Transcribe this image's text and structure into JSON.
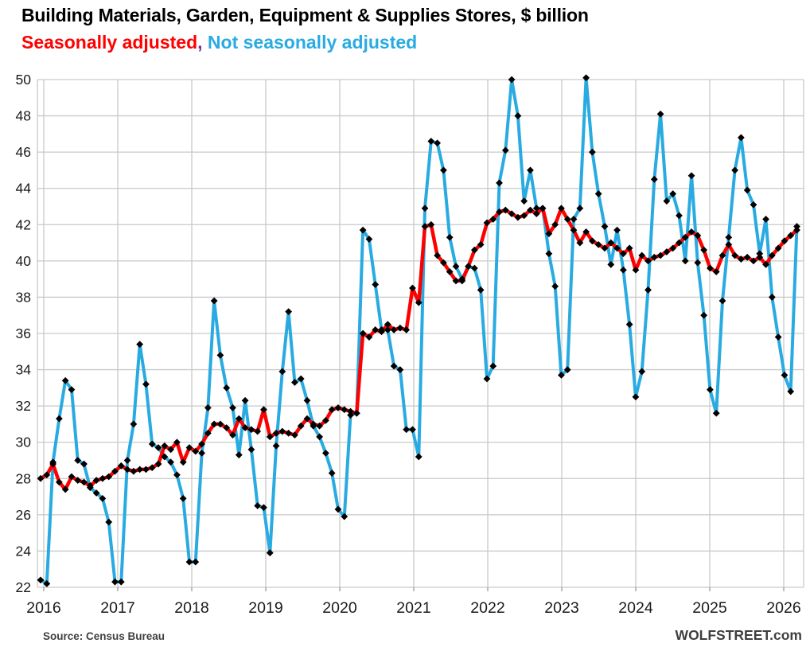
{
  "title": "Building Materials, Garden, Equipment & Supplies Stores, $ billion",
  "subtitle": {
    "sa_label": "Seasonally adjusted",
    "separator": ", ",
    "nsa_label": "Not seasonally adjusted",
    "sa_color": "#ff0000",
    "separator_color": "#7030a0",
    "nsa_color": "#29abe2"
  },
  "footer": {
    "source": "Source: Census Bureau",
    "site": "WOLFSTREET.com"
  },
  "chart_data": {
    "type": "line",
    "title": "Building Materials, Garden, Equipment & Supplies Stores, $ billion",
    "x_start": "2016-01",
    "x_end": "2026-03",
    "x_frequency": "monthly",
    "x_tick_labels": [
      "2016",
      "2017",
      "2018",
      "2019",
      "2020",
      "2021",
      "2022",
      "2023",
      "2024",
      "2025",
      "2026"
    ],
    "ylim": [
      22,
      50
    ],
    "y_ticks": [
      22,
      24,
      26,
      28,
      30,
      32,
      34,
      36,
      38,
      40,
      42,
      44,
      46,
      48,
      50
    ],
    "grid": true,
    "marker": "diamond",
    "marker_color": "#000000",
    "grid_color": "#c9c9c9",
    "legend_position": "subtitle",
    "series": [
      {
        "name": "Not seasonally adjusted",
        "color": "#29abe2",
        "width": 4,
        "values": [
          22.4,
          22.2,
          28.9,
          31.3,
          33.4,
          32.9,
          29.0,
          28.8,
          27.5,
          27.2,
          26.9,
          25.6,
          22.3,
          22.3,
          29.0,
          31.0,
          35.4,
          33.2,
          29.9,
          29.7,
          29.2,
          28.9,
          28.2,
          26.9,
          23.4,
          23.4,
          29.4,
          31.9,
          37.8,
          34.8,
          33.0,
          31.9,
          29.3,
          32.3,
          29.6,
          26.5,
          26.4,
          23.9,
          29.8,
          33.9,
          37.2,
          33.3,
          33.5,
          32.3,
          30.9,
          30.3,
          29.4,
          28.3,
          26.3,
          25.9,
          31.5,
          31.6,
          41.7,
          41.2,
          38.7,
          36.2,
          36.2,
          34.2,
          34.0,
          30.7,
          30.7,
          29.2,
          42.9,
          46.6,
          46.5,
          45.0,
          41.3,
          39.7,
          39.0,
          39.7,
          39.6,
          38.4,
          33.5,
          34.2,
          44.3,
          46.1,
          50.0,
          48.0,
          43.3,
          45.0,
          42.9,
          42.9,
          40.4,
          38.6,
          33.7,
          34.0,
          42.3,
          42.9,
          50.1,
          46.0,
          43.7,
          41.9,
          39.8,
          41.7,
          39.5,
          36.5,
          32.5,
          33.9,
          38.4,
          44.5,
          48.1,
          43.3,
          43.7,
          42.5,
          40.0,
          44.7,
          39.9,
          37.0,
          32.9,
          31.6,
          37.8,
          41.3,
          45.0,
          46.8,
          43.9,
          43.1,
          40.4,
          42.3,
          38.0,
          35.8,
          33.7,
          32.8,
          41.9
        ]
      },
      {
        "name": "Seasonally adjusted",
        "color": "#ff0000",
        "width": 4.5,
        "values": [
          28.0,
          28.2,
          28.8,
          27.8,
          27.4,
          28.1,
          27.9,
          27.8,
          27.6,
          27.9,
          28.0,
          28.1,
          28.4,
          28.7,
          28.5,
          28.4,
          28.5,
          28.5,
          28.6,
          28.8,
          29.8,
          29.6,
          30.0,
          28.9,
          29.7,
          29.5,
          29.9,
          30.5,
          31.0,
          31.0,
          30.8,
          30.4,
          31.3,
          30.8,
          30.7,
          30.6,
          31.8,
          30.3,
          30.5,
          30.6,
          30.5,
          30.4,
          30.9,
          31.3,
          31.0,
          30.9,
          31.2,
          31.8,
          31.9,
          31.8,
          31.7,
          31.6,
          36.0,
          35.8,
          36.2,
          36.1,
          36.5,
          36.2,
          36.3,
          36.2,
          38.5,
          37.7,
          41.9,
          42.0,
          40.3,
          39.9,
          39.4,
          38.9,
          38.9,
          39.7,
          40.6,
          40.9,
          42.1,
          42.3,
          42.7,
          42.8,
          42.6,
          42.4,
          42.5,
          42.8,
          42.6,
          42.9,
          41.5,
          42.0,
          42.9,
          42.3,
          41.7,
          41.0,
          41.6,
          41.1,
          40.9,
          40.7,
          41.0,
          40.7,
          40.4,
          40.7,
          39.5,
          40.3,
          40.0,
          40.2,
          40.3,
          40.5,
          40.7,
          41.0,
          41.3,
          41.6,
          41.4,
          40.6,
          39.6,
          39.4,
          40.3,
          40.9,
          40.3,
          40.1,
          40.2,
          40.0,
          40.2,
          39.8,
          40.3,
          40.7,
          41.1,
          41.4,
          41.7
        ]
      }
    ]
  }
}
